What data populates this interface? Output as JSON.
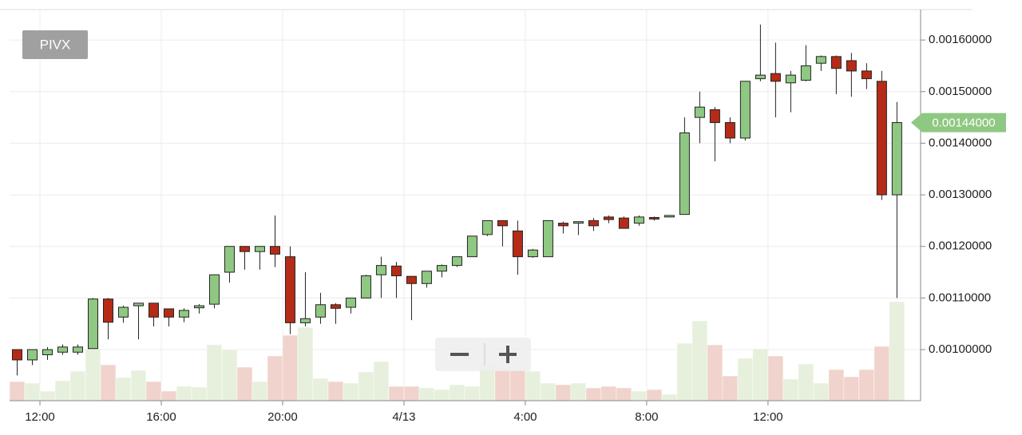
{
  "chart_data": {
    "type": "candlestick",
    "title": "PIVX",
    "up_color": "#8fc882",
    "down_color": "#b52b17",
    "volume_up_color": "#e6f0dd",
    "volume_down_color": "#f0d3cc",
    "grid": true,
    "x": [
      11.25,
      11.75,
      12.25,
      12.75,
      13.25,
      13.75,
      14.25,
      14.75,
      15.25,
      15.75,
      16.25,
      16.75,
      17.25,
      17.75,
      18.25,
      18.75,
      19.25,
      19.75,
      20.25,
      20.75,
      21.25,
      21.75,
      22.25,
      22.75,
      23.25,
      23.75,
      24.25,
      24.75,
      25.25,
      25.75,
      26.25,
      26.75,
      27.25,
      27.75,
      28.25,
      28.75,
      29.25,
      29.75,
      30.25,
      30.75,
      31.25,
      31.75,
      32.25,
      32.75,
      33.25,
      33.75,
      34.25,
      34.75,
      35.25,
      35.75,
      36.25,
      36.75,
      37.25,
      37.75,
      38.25,
      38.75,
      39.25,
      39.75,
      40.25
    ],
    "open": [
      0.001,
      0.00098,
      0.00099,
      0.000995,
      0.000995,
      0.001002,
      0.001098,
      0.001063,
      0.001085,
      0.00109,
      0.001079,
      0.001063,
      0.001081,
      0.001088,
      0.00115,
      0.0012,
      0.00119,
      0.0012,
      0.00118,
      0.001052,
      0.001063,
      0.001087,
      0.001082,
      0.0011,
      0.001145,
      0.001162,
      0.001142,
      0.001128,
      0.001152,
      0.001163,
      0.00118,
      0.001223,
      0.00125,
      0.00123,
      0.00118,
      0.00118,
      0.001245,
      0.001245,
      0.00125,
      0.001257,
      0.001255,
      0.001245,
      0.001256,
      0.001257,
      0.001262,
      0.00145,
      0.001465,
      0.00144,
      0.00141,
      0.001525,
      0.001535,
      0.001517,
      0.001522,
      0.001555,
      0.001568,
      0.00156,
      0.00154,
      0.00152,
      0.0013
    ],
    "high": [
      0.001,
      0.001,
      0.001005,
      0.00101,
      0.00101,
      0.0011,
      0.0011,
      0.001085,
      0.00109,
      0.00109,
      0.001079,
      0.00108,
      0.001088,
      0.001145,
      0.0012,
      0.0012,
      0.0012,
      0.00126,
      0.0012,
      0.00115,
      0.00111,
      0.00109,
      0.0011,
      0.001145,
      0.00118,
      0.00117,
      0.001142,
      0.001152,
      0.001165,
      0.00118,
      0.00122,
      0.00125,
      0.00125,
      0.00125,
      0.001195,
      0.00125,
      0.001248,
      0.001248,
      0.001255,
      0.00126,
      0.001258,
      0.00126,
      0.001258,
      0.00126,
      0.00145,
      0.0015,
      0.00147,
      0.00145,
      0.00152,
      0.00163,
      0.001595,
      0.00154,
      0.00159,
      0.00157,
      0.00157,
      0.001575,
      0.001555,
      0.00154,
      0.00148
    ],
    "low": [
      0.00095,
      0.00097,
      0.00098,
      0.00099,
      0.00099,
      0.001002,
      0.00102,
      0.001052,
      0.00102,
      0.001045,
      0.001045,
      0.001053,
      0.00107,
      0.00108,
      0.00113,
      0.001155,
      0.001155,
      0.00116,
      0.00103,
      0.001045,
      0.00105,
      0.00105,
      0.00107,
      0.0011,
      0.0011,
      0.0011,
      0.001057,
      0.00112,
      0.00114,
      0.00116,
      0.00118,
      0.00122,
      0.0012,
      0.001145,
      0.001178,
      0.00118,
      0.001225,
      0.001222,
      0.00123,
      0.001245,
      0.001235,
      0.00124,
      0.00125,
      0.001257,
      0.001262,
      0.0014,
      0.001365,
      0.0014,
      0.001405,
      0.00152,
      0.00145,
      0.00146,
      0.00152,
      0.00154,
      0.001495,
      0.00149,
      0.001505,
      0.00129,
      0.0011
    ],
    "close": [
      0.00098,
      0.001,
      0.001,
      0.001005,
      0.001005,
      0.001098,
      0.001053,
      0.001082,
      0.00109,
      0.001063,
      0.001063,
      0.001076,
      0.001085,
      0.001145,
      0.0012,
      0.00119,
      0.0012,
      0.001185,
      0.001052,
      0.00106,
      0.001087,
      0.00108,
      0.0011,
      0.001143,
      0.001163,
      0.001143,
      0.001128,
      0.001152,
      0.001163,
      0.00118,
      0.00122,
      0.00125,
      0.00124,
      0.00118,
      0.001193,
      0.00125,
      0.00124,
      0.001248,
      0.00124,
      0.001252,
      0.001235,
      0.001257,
      0.001253,
      0.00126,
      0.00142,
      0.00147,
      0.00144,
      0.00141,
      0.00152,
      0.001532,
      0.00152,
      0.001532,
      0.00155,
      0.001568,
      0.001545,
      0.00154,
      0.001525,
      0.0013,
      0.00144
    ],
    "volume": [
      24,
      22,
      12,
      25,
      37,
      65,
      45,
      29,
      38,
      24,
      12,
      18,
      17,
      70,
      64,
      42,
      24,
      56,
      82,
      92,
      28,
      24,
      22,
      36,
      49,
      18,
      18,
      16,
      14,
      20,
      18,
      46,
      40,
      39,
      37,
      22,
      20,
      22,
      16,
      18,
      16,
      12,
      14,
      8,
      72,
      100,
      70,
      31,
      53,
      65,
      56,
      27,
      46,
      22,
      39,
      30,
      39,
      68,
      124
    ],
    "xlim": [
      11,
      41.03
    ],
    "xticks": [
      {
        "value": 12,
        "label": "12:00"
      },
      {
        "value": 16,
        "label": "16:00"
      },
      {
        "value": 20,
        "label": "20:00"
      },
      {
        "value": 24,
        "label": "4/13"
      },
      {
        "value": 28,
        "label": "4:00"
      },
      {
        "value": 32,
        "label": "8:00"
      },
      {
        "value": 36,
        "label": "12:00"
      }
    ],
    "ylim": [
      0.000901,
      0.001659
    ],
    "yticks": [
      {
        "value": 0.0016,
        "label": "0.00160000"
      },
      {
        "value": 0.0015,
        "label": "0.00150000"
      },
      {
        "value": 0.0014,
        "label": "0.00140000"
      },
      {
        "value": 0.0013,
        "label": "0.00130000"
      },
      {
        "value": 0.0012,
        "label": "0.00120000"
      },
      {
        "value": 0.0011,
        "label": "0.00110000"
      },
      {
        "value": 0.001,
        "label": "0.00100000"
      }
    ],
    "y2lim": [
      0,
      490
    ],
    "last_price": {
      "value": 0.00144,
      "label": "0.00144000"
    }
  }
}
